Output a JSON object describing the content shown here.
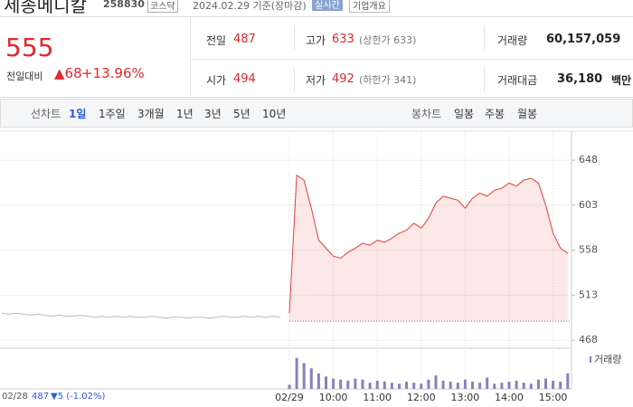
{
  "header": {
    "name": "세종메디칼",
    "code": "258830",
    "market": "코스닥",
    "date": "2024.02.29 기준(장마감)",
    "realtime": "실시간",
    "company": "기업개요"
  },
  "quote": {
    "price": "555",
    "change_label": "전일대비",
    "change": "▲68",
    "rate": "+13.96%"
  },
  "table": {
    "rows": [
      [
        {
          "label": "전일",
          "value": "487"
        },
        {
          "label": "고가",
          "value": "633",
          "note": "(상한가 633)"
        },
        {
          "label": "거래량",
          "value": "60,157,059"
        }
      ],
      [
        {
          "label": "시가",
          "value": "494"
        },
        {
          "label": "저가",
          "value": "492",
          "note": "(하한가 341)"
        },
        {
          "label": "거래대금",
          "value": "36,180",
          "unit": "백만"
        }
      ]
    ]
  },
  "tabs": {
    "line_label": "선차트",
    "periods": [
      "1일",
      "1주일",
      "3개월",
      "1년",
      "3년",
      "5년",
      "10년"
    ],
    "candle_label": "봉차트",
    "candles": [
      "일봉",
      "주봉",
      "월봉"
    ]
  },
  "chart_data": [
    {
      "type": "line",
      "baseline": 487,
      "categories": [
        "02/28",
        null,
        null,
        null,
        null,
        null,
        null,
        null,
        null,
        null,
        null,
        null,
        null,
        null,
        null,
        null,
        null,
        null,
        null,
        null,
        null,
        null,
        null,
        null,
        null,
        null,
        null,
        null,
        null,
        null,
        null,
        null,
        null,
        null,
        null,
        null,
        null,
        null,
        null,
        null,
        "02/29",
        null,
        null,
        null,
        null,
        null,
        "10:00",
        null,
        null,
        null,
        null,
        null,
        "11:00",
        null,
        null,
        null,
        null,
        null,
        "12:00",
        null,
        null,
        null,
        null,
        null,
        "13:00",
        null,
        null,
        null,
        null,
        null,
        "14:00",
        null,
        null,
        null,
        null,
        null,
        "15:00",
        null,
        null,
        null
      ],
      "series": [
        {
          "color": "#bbbbbb",
          "values": [
            495,
            494,
            495,
            494,
            493,
            494,
            493,
            492,
            493,
            492,
            492,
            493,
            492,
            491,
            492,
            491,
            492,
            491,
            492,
            491,
            491,
            492,
            491,
            490,
            491,
            491,
            490,
            491,
            491,
            490,
            491,
            492,
            491,
            491,
            492,
            491,
            492,
            491,
            492,
            491,
            null,
            null,
            null,
            null,
            null,
            null,
            null,
            null,
            null,
            null,
            null,
            null,
            null,
            null,
            null,
            null,
            null,
            null,
            null,
            null,
            null,
            null,
            null,
            null,
            null,
            null,
            null,
            null,
            null,
            null,
            null,
            null,
            null,
            null,
            null,
            null,
            null,
            null,
            null,
            null
          ]
        },
        {
          "color": "#e0413c",
          "values": [
            null,
            null,
            null,
            null,
            null,
            null,
            null,
            null,
            null,
            null,
            null,
            null,
            null,
            null,
            null,
            null,
            null,
            null,
            null,
            null,
            null,
            null,
            null,
            null,
            null,
            null,
            null,
            null,
            null,
            null,
            null,
            null,
            null,
            null,
            null,
            null,
            null,
            null,
            null,
            null,
            495,
            633,
            628,
            600,
            568,
            560,
            552,
            550,
            556,
            560,
            565,
            563,
            568,
            566,
            570,
            575,
            578,
            585,
            580,
            590,
            605,
            612,
            610,
            608,
            600,
            610,
            615,
            612,
            618,
            620,
            625,
            622,
            628,
            630,
            625,
            603,
            575,
            560,
            555,
            null
          ]
        }
      ],
      "ylim": [
        460,
        677
      ],
      "yticks": [
        468,
        513,
        558,
        603,
        648
      ]
    },
    {
      "type": "bar",
      "title": "거래량",
      "color": "#8a7fc0",
      "ylim": [
        0,
        3500000
      ],
      "values": [
        null,
        null,
        null,
        null,
        null,
        null,
        null,
        null,
        null,
        null,
        null,
        null,
        null,
        null,
        null,
        null,
        null,
        null,
        null,
        null,
        null,
        null,
        null,
        null,
        null,
        null,
        null,
        null,
        null,
        null,
        null,
        null,
        null,
        null,
        null,
        null,
        null,
        null,
        null,
        null,
        400000,
        3000000,
        2500000,
        2000000,
        1500000,
        1200000,
        1000000,
        900000,
        800000,
        1000000,
        900000,
        600000,
        800000,
        700000,
        600000,
        500000,
        700000,
        600000,
        500000,
        900000,
        1300000,
        800000,
        700000,
        600000,
        900000,
        700000,
        600000,
        1100000,
        500000,
        600000,
        700000,
        800000,
        600000,
        500000,
        900000,
        1000000,
        800000,
        700000,
        1500000,
        null
      ]
    }
  ],
  "footer": {
    "date": "02/28",
    "price": "487",
    "change": "▼5 (-1.02%)"
  }
}
